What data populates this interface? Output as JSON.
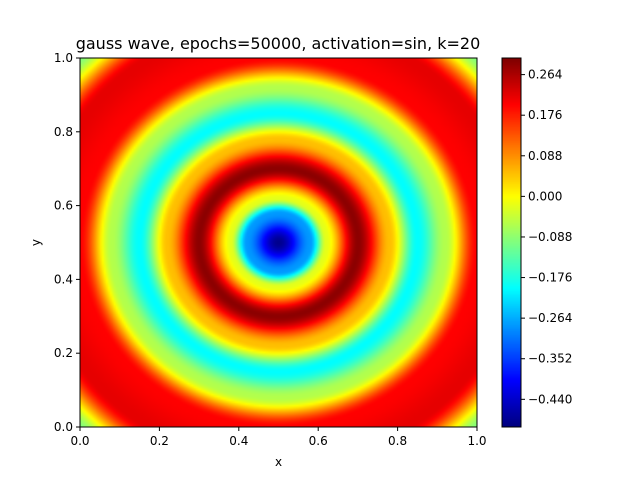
{
  "chart_data": {
    "type": "heatmap",
    "title": "gauss wave, epochs=50000, activation=sin, k=20",
    "xlabel": "x",
    "ylabel": "y",
    "xlim": [
      0.0,
      1.0
    ],
    "ylim": [
      0.0,
      1.0
    ],
    "x_ticks": [
      "0.0",
      "0.2",
      "0.4",
      "0.6",
      "0.8",
      "1.0"
    ],
    "y_ticks": [
      "0.0",
      "0.2",
      "0.4",
      "0.6",
      "0.8",
      "1.0"
    ],
    "colormap": "jet",
    "colorbar": {
      "range": [
        -0.5,
        0.3
      ],
      "ticks": [
        "−0.440",
        "−0.352",
        "−0.264",
        "−0.176",
        "−0.088",
        "0.000",
        "0.088",
        "0.176",
        "0.264"
      ],
      "tick_values": [
        -0.44,
        -0.352,
        -0.264,
        -0.176,
        -0.088,
        0.0,
        0.088,
        0.176,
        0.264
      ]
    },
    "field": {
      "description_values": "radially symmetric wave centered at (0.5, 0.5)",
      "center": [
        0.5,
        0.5
      ],
      "value_at_center": -0.49,
      "ring_profile": [
        {
          "r": 0.0,
          "value": -0.49
        },
        {
          "r": 0.08,
          "value": -0.28
        },
        {
          "r": 0.12,
          "value": -0.02
        },
        {
          "r": 0.2,
          "value": 0.29
        },
        {
          "r": 0.28,
          "value": 0.05
        },
        {
          "r": 0.35,
          "value": -0.2
        },
        {
          "r": 0.42,
          "value": -0.06
        },
        {
          "r": 0.5,
          "value": 0.2
        },
        {
          "r": 0.6,
          "value": 0.22
        },
        {
          "r": 0.71,
          "value": -0.1
        }
      ]
    },
    "grid": false
  }
}
